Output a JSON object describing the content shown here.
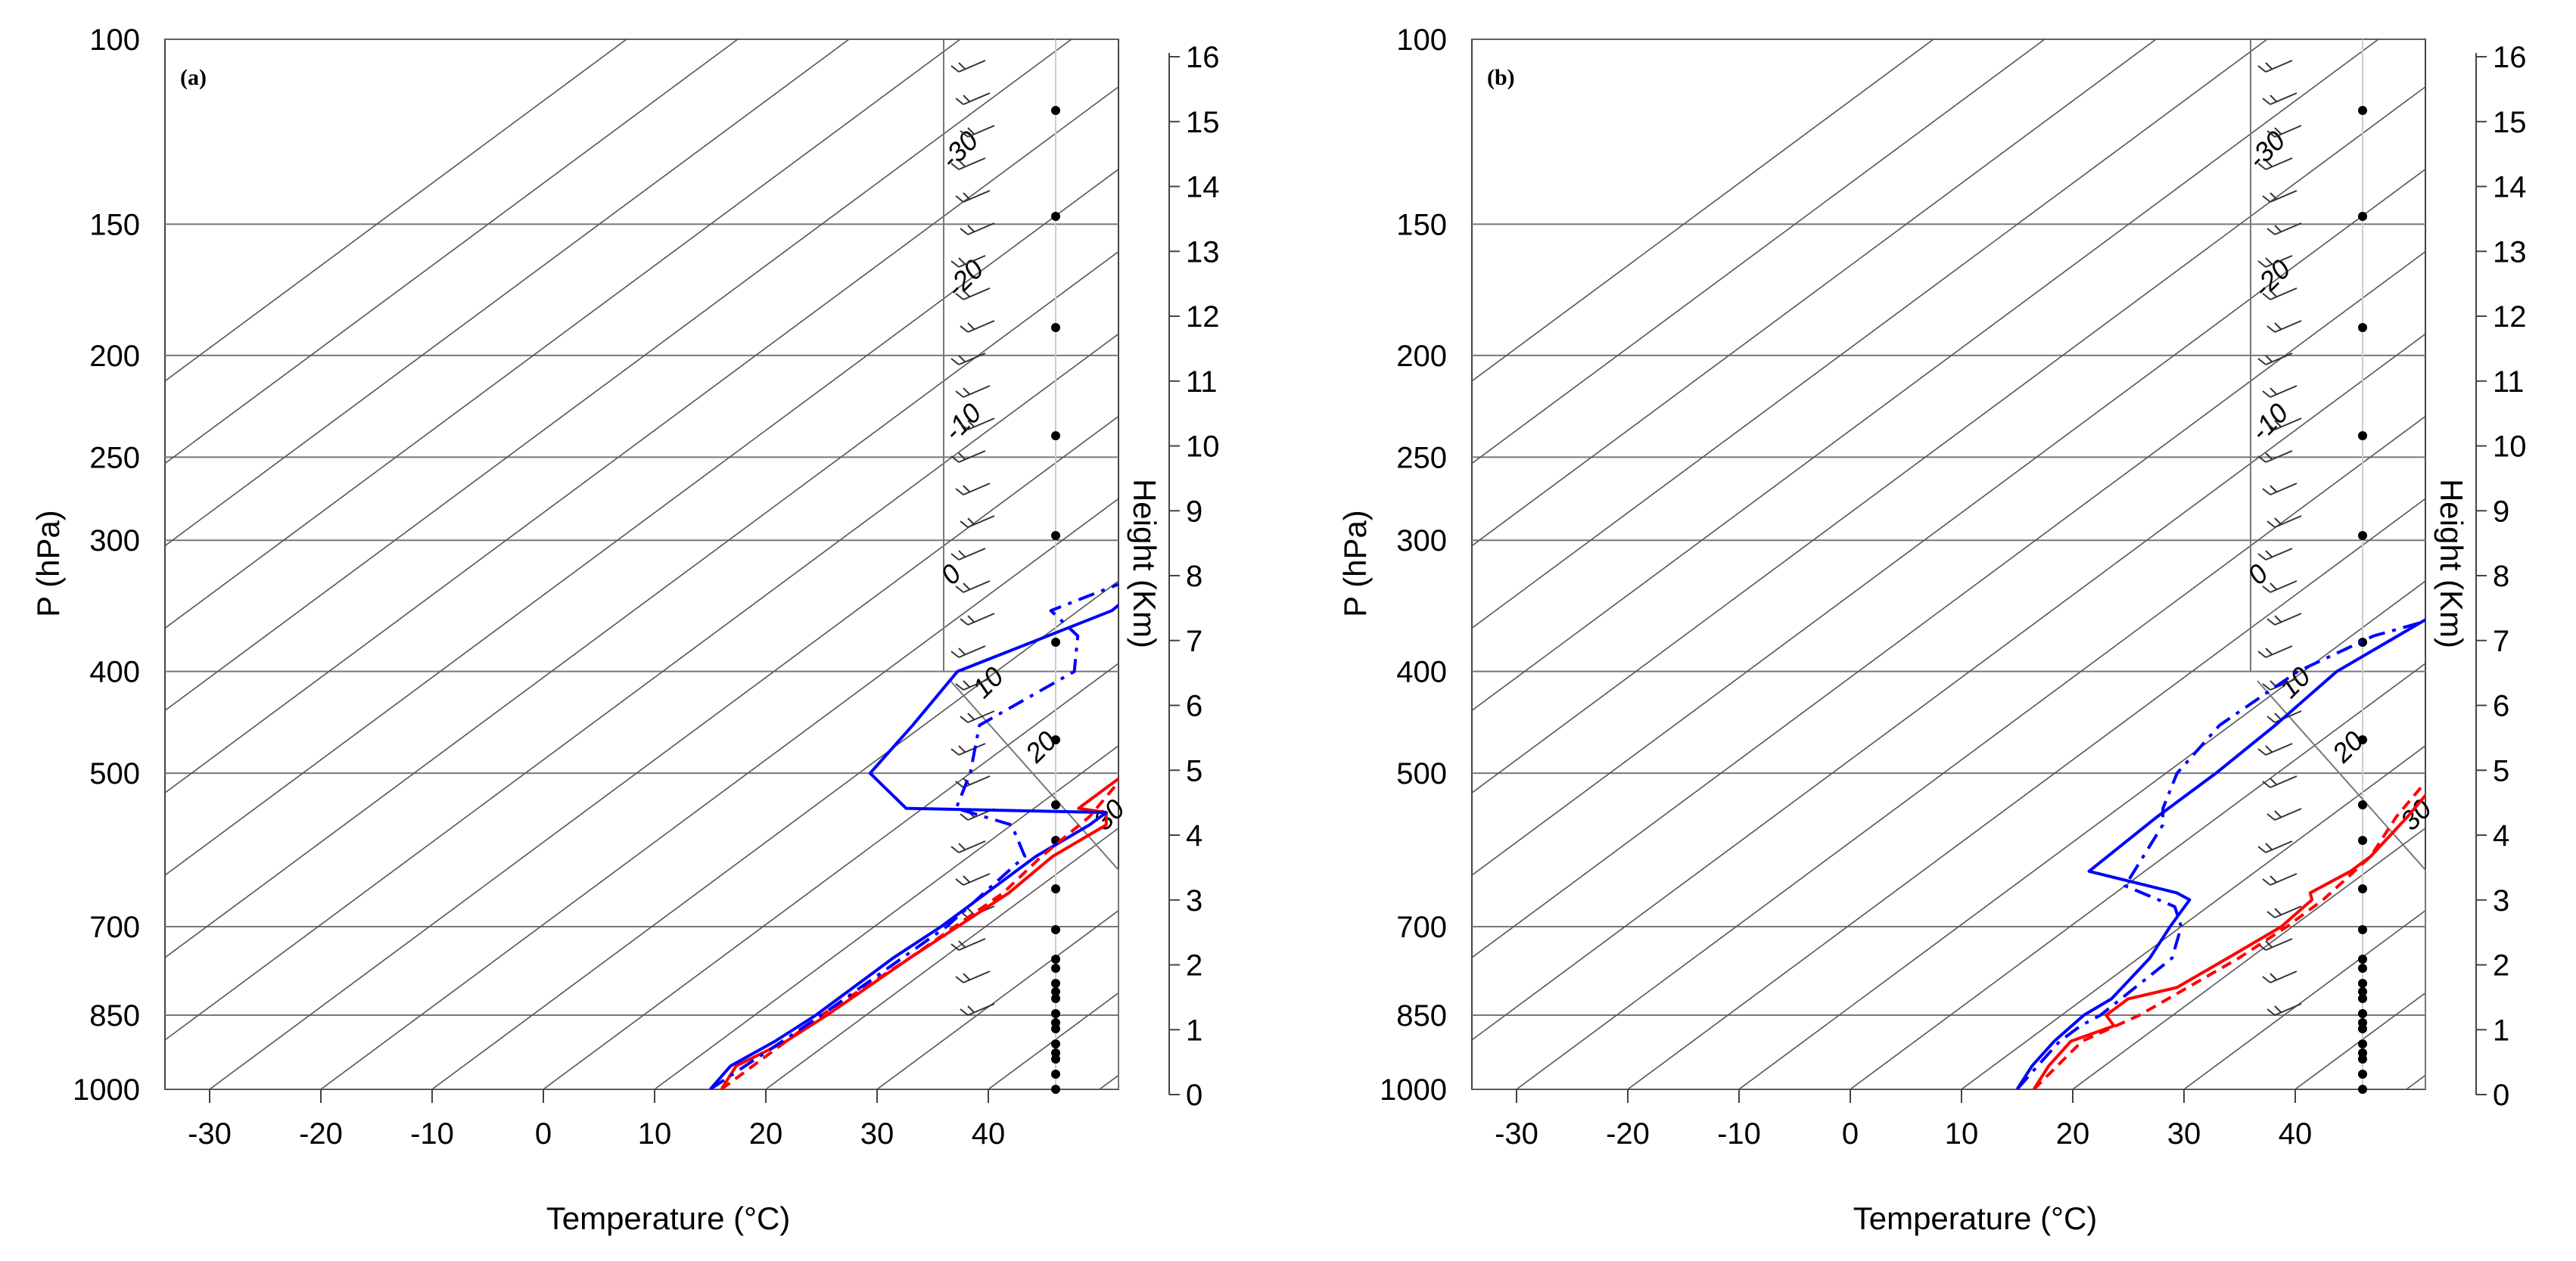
{
  "chart_data": [
    {
      "type": "line",
      "panel_label": "(a)",
      "xlabel": "Temperature (°C)",
      "ylabel": "P (hPa)",
      "y2label": "Height (Km)",
      "xlim": [
        -35,
        52
      ],
      "ylim": [
        1000,
        100
      ],
      "x_ticks": [
        "-30",
        "-20",
        "-10",
        "0",
        "10",
        "20",
        "30",
        "40"
      ],
      "p_ticks": [
        "100",
        "150",
        "200",
        "250",
        "300",
        "400",
        "500",
        "700",
        "850",
        "1000"
      ],
      "height_ticks": [
        "0",
        "1",
        "2",
        "3",
        "4",
        "5",
        "6",
        "7",
        "8",
        "9",
        "10",
        "11",
        "12",
        "13",
        "14",
        "15",
        "16"
      ],
      "wind_speed_labels": [
        "-30",
        "-20",
        "-10",
        "0",
        "10",
        "20",
        "30"
      ],
      "series": [
        {
          "name": "Temperature (solid)",
          "color": "#ff0000",
          "style": "solid",
          "points": [
            [
              16,
              1000
            ],
            [
              14.5,
              950
            ],
            [
              16,
              900
            ],
            [
              16.5,
              850
            ],
            [
              17,
              750
            ],
            [
              17.5,
              700
            ],
            [
              18,
              650
            ],
            [
              17.5,
              600
            ],
            [
              18.5,
              560
            ],
            [
              17,
              545
            ],
            [
              14,
              540
            ],
            [
              14,
              500
            ],
            [
              12.5,
              450
            ],
            [
              12,
              400
            ],
            [
              13.5,
              350
            ],
            [
              12,
              300
            ],
            [
              10,
              250
            ],
            [
              8,
              200
            ],
            [
              7.5,
              198
            ]
          ]
        },
        {
          "name": "Dew point (solid)",
          "color": "#0000ff",
          "style": "solid",
          "points": [
            [
              15,
              1000
            ],
            [
              14,
              950
            ],
            [
              15,
              900
            ],
            [
              15.5,
              850
            ],
            [
              15.5,
              750
            ],
            [
              16,
              700
            ],
            [
              16,
              650
            ],
            [
              16,
              600
            ],
            [
              17,
              560
            ],
            [
              17,
              545
            ],
            [
              -1.5,
              540
            ],
            [
              -9,
              500
            ],
            [
              -11,
              450
            ],
            [
              -13.5,
              400
            ],
            [
              -7,
              350
            ],
            [
              -8,
              300
            ],
            [
              -9,
              250
            ],
            [
              -9,
              200
            ],
            [
              -9.5,
              198
            ]
          ]
        },
        {
          "name": "Temperature (dashed)",
          "color": "#ff0000",
          "style": "dashed",
          "points": [
            [
              16,
              1000
            ],
            [
              16,
              900
            ],
            [
              16,
              850
            ],
            [
              17,
              750
            ],
            [
              17.5,
              650
            ],
            [
              16.5,
              600
            ],
            [
              16,
              550
            ],
            [
              14,
              500
            ],
            [
              12,
              450
            ],
            [
              11.5,
              400
            ],
            [
              10.5,
              350
            ],
            [
              10,
              300
            ],
            [
              8,
              250
            ],
            [
              6,
              200
            ],
            [
              4,
              170
            ],
            [
              3,
              150
            ],
            [
              4.5,
              130
            ],
            [
              6,
              115
            ],
            [
              7.5,
              100
            ]
          ]
        },
        {
          "name": "Dew point (dash-dot)",
          "color": "#0000ff",
          "style": "dashdot",
          "points": [
            [
              15,
              1000
            ],
            [
              16,
              850
            ],
            [
              16.5,
              700
            ],
            [
              15,
              600
            ],
            [
              10,
              560
            ],
            [
              3,
              540
            ],
            [
              0,
              500
            ],
            [
              -5,
              450
            ],
            [
              -3,
              400
            ],
            [
              -7,
              370
            ],
            [
              -12.5,
              350
            ],
            [
              -8,
              320
            ],
            [
              -2,
              300
            ],
            [
              -5,
              250
            ],
            [
              -12,
              200
            ],
            [
              -17,
              175
            ],
            [
              -16,
              150
            ],
            [
              -14,
              130
            ],
            [
              -11,
              115
            ],
            [
              -6,
              100
            ]
          ]
        }
      ]
    },
    {
      "type": "line",
      "panel_label": "(b)",
      "xlabel": "Temperature (°C)",
      "ylabel": "P (hPa)",
      "y2label": "Height (Km)",
      "xlim": [
        -35,
        52
      ],
      "ylim": [
        1000,
        100
      ],
      "x_ticks": [
        "-30",
        "-20",
        "-10",
        "0",
        "10",
        "20",
        "30",
        "40"
      ],
      "p_ticks": [
        "100",
        "150",
        "200",
        "250",
        "300",
        "400",
        "500",
        "700",
        "850",
        "1000"
      ],
      "height_ticks": [
        "0",
        "1",
        "2",
        "3",
        "4",
        "5",
        "6",
        "7",
        "8",
        "9",
        "10",
        "11",
        "12",
        "13",
        "14",
        "15",
        "16"
      ],
      "wind_speed_labels": [
        "-30",
        "-20",
        "-10",
        "0",
        "10",
        "20",
        "30"
      ],
      "series": [
        {
          "name": "Temperature (solid)",
          "color": "#ff0000",
          "style": "solid",
          "points": [
            [
              16.5,
              1000
            ],
            [
              15,
              950
            ],
            [
              14,
              900
            ],
            [
              16,
              870
            ],
            [
              14,
              850
            ],
            [
              14,
              820
            ],
            [
              17,
              800
            ],
            [
              18,
              750
            ],
            [
              19,
              700
            ],
            [
              18.5,
              660
            ],
            [
              17.5,
              650
            ],
            [
              18.5,
              620
            ],
            [
              18.5,
              600
            ],
            [
              17,
              550
            ],
            [
              15,
              500
            ],
            [
              13.5,
              450
            ],
            [
              12.5,
              420
            ],
            [
              12.5,
              400
            ],
            [
              10,
              370
            ],
            [
              7.5,
              350
            ],
            [
              8.5,
              300
            ],
            [
              10,
              270
            ],
            [
              11,
              260
            ],
            [
              9,
              250
            ],
            [
              8,
              200
            ]
          ]
        },
        {
          "name": "Dew point (solid)",
          "color": "#0000ff",
          "style": "solid",
          "points": [
            [
              15,
              1000
            ],
            [
              13.5,
              950
            ],
            [
              12.5,
              900
            ],
            [
              12,
              850
            ],
            [
              12.5,
              820
            ],
            [
              11,
              750
            ],
            [
              9,
              700
            ],
            [
              7.5,
              660
            ],
            [
              5.5,
              650
            ],
            [
              -5,
              620
            ],
            [
              -5.5,
              550
            ],
            [
              -5.5,
              500
            ],
            [
              -6,
              450
            ],
            [
              -7,
              400
            ],
            [
              -5,
              350
            ],
            [
              -5,
              300
            ],
            [
              -6,
              270
            ],
            [
              -7.5,
              250
            ],
            [
              -8,
              200
            ]
          ]
        },
        {
          "name": "Temperature (dashed)",
          "color": "#ff0000",
          "style": "dashed",
          "points": [
            [
              16.5,
              1000
            ],
            [
              15,
              900
            ],
            [
              17,
              850
            ],
            [
              19,
              750
            ],
            [
              19.5,
              700
            ],
            [
              19.5,
              660
            ],
            [
              18.5,
              600
            ],
            [
              16,
              550
            ],
            [
              14,
              500
            ],
            [
              12,
              450
            ],
            [
              10,
              420
            ],
            [
              8.5,
              400
            ],
            [
              7.5,
              350
            ],
            [
              8.5,
              300
            ],
            [
              9,
              250
            ],
            [
              7,
              200
            ],
            [
              4.5,
              170
            ],
            [
              3.5,
              150
            ],
            [
              5,
              130
            ],
            [
              5.5,
              115
            ],
            [
              6,
              100
            ]
          ]
        },
        {
          "name": "Dew point (dash-dot)",
          "color": "#0000ff",
          "style": "dashdot",
          "points": [
            [
              15,
              1000
            ],
            [
              14,
              950
            ],
            [
              13,
              900
            ],
            [
              13,
              870
            ],
            [
              13.5,
              850
            ],
            [
              13,
              750
            ],
            [
              10,
              700
            ],
            [
              7,
              670
            ],
            [
              0,
              640
            ],
            [
              -4,
              560
            ],
            [
              -6,
              540
            ],
            [
              -9,
              500
            ],
            [
              -11,
              450
            ],
            [
              -10.5,
              400
            ],
            [
              -8,
              370
            ],
            [
              -3,
              350
            ],
            [
              -4,
              300
            ],
            [
              -3,
              250
            ],
            [
              -6,
              220
            ],
            [
              -13,
              200
            ],
            [
              -19,
              180
            ],
            [
              -17,
              150
            ],
            [
              -15,
              130
            ],
            [
              -13,
              115
            ],
            [
              -9,
              100
            ]
          ]
        }
      ]
    }
  ]
}
